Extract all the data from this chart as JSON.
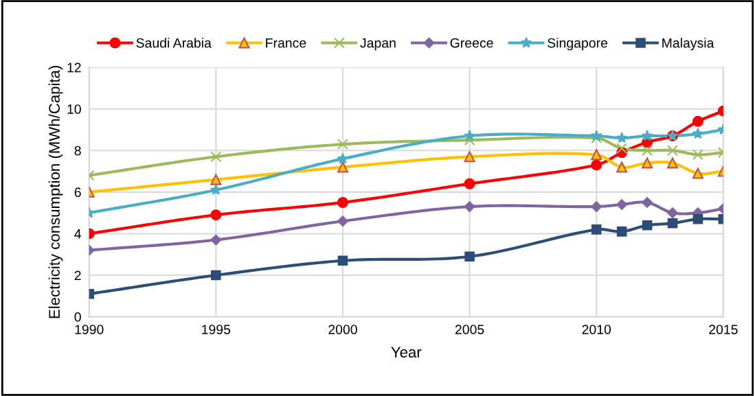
{
  "chart_data": {
    "type": "line",
    "xlabel": "Year",
    "ylabel": "Electricity consumption (MWh/Capita)",
    "x": [
      1990,
      1995,
      2000,
      2005,
      2010,
      2011,
      2012,
      2013,
      2014,
      2015
    ],
    "xlim": [
      1990,
      2015
    ],
    "xticks": [
      1990,
      1995,
      2000,
      2005,
      2010,
      2015
    ],
    "ylim": [
      0,
      12
    ],
    "yticks": [
      0,
      2,
      4,
      6,
      8,
      10,
      12
    ],
    "grid": true,
    "legend": "top",
    "series": [
      {
        "name": "Saudi Arabia",
        "color": "#ff0000",
        "marker": "circle",
        "values": [
          4.0,
          4.9,
          5.5,
          6.4,
          7.3,
          7.9,
          8.4,
          8.7,
          9.4,
          9.9
        ]
      },
      {
        "name": "France",
        "color": "#ffc000",
        "marker": "triangle",
        "values": [
          6.0,
          6.6,
          7.2,
          7.7,
          7.8,
          7.2,
          7.4,
          7.4,
          6.9,
          7.0
        ]
      },
      {
        "name": "Japan",
        "color": "#9bbb59",
        "marker": "cross",
        "values": [
          6.8,
          7.7,
          8.3,
          8.5,
          8.6,
          8.1,
          8.0,
          8.0,
          7.8,
          7.9
        ]
      },
      {
        "name": "Greece",
        "color": "#8064a2",
        "marker": "diamond",
        "values": [
          3.2,
          3.7,
          4.6,
          5.3,
          5.3,
          5.4,
          5.5,
          5.0,
          5.0,
          5.2
        ]
      },
      {
        "name": "Singapore",
        "color": "#4bacc6",
        "marker": "star",
        "values": [
          5.0,
          6.1,
          7.6,
          8.7,
          8.7,
          8.6,
          8.7,
          8.7,
          8.8,
          9.0
        ]
      },
      {
        "name": "Malaysia",
        "color": "#2c4d75",
        "marker": "square",
        "values": [
          1.1,
          2.0,
          2.7,
          2.9,
          4.2,
          4.1,
          4.4,
          4.5,
          4.7,
          4.7
        ]
      }
    ]
  }
}
